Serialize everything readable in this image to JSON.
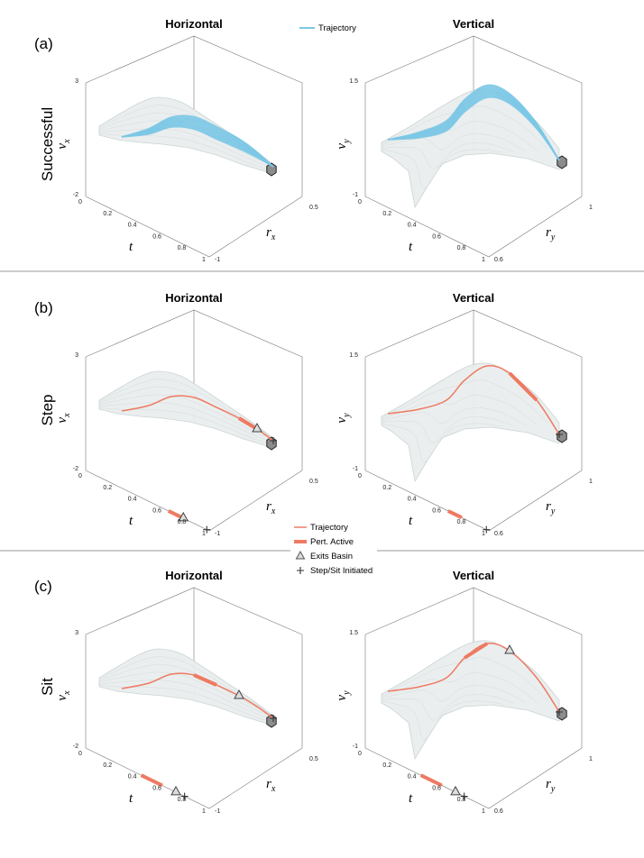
{
  "figure": {
    "panel_titles": {
      "horizontal": "Horizontal",
      "vertical": "Vertical"
    },
    "top_legend": {
      "trajectory": "Trajectory"
    },
    "mid_legend": {
      "trajectory": "Trajectory",
      "pert_active": "Pert. Active",
      "exits_basin": "Exits Basin",
      "step_sit": "Step/Sit Initiated"
    },
    "colors": {
      "successful": "#7cc8e6",
      "failure": "#ee7a62",
      "basin": "#c9d2d2",
      "target": "#8c8c8c"
    },
    "rows": [
      {
        "tag": "(a)",
        "label": "Successful"
      },
      {
        "tag": "(b)",
        "label": "Step"
      },
      {
        "tag": "(c)",
        "label": "Sit"
      }
    ]
  },
  "chart_data": [
    {
      "type": "line3d",
      "row": "Successful",
      "panel": "Horizontal",
      "title": "Horizontal",
      "axes": {
        "t": {
          "label": "t",
          "ticks": [
            "0",
            "0.2",
            "0.4",
            "0.6",
            "0.8",
            "1"
          ]
        },
        "r": {
          "label": "r",
          "sub": "x",
          "ticks": [
            "-1",
            "0.5"
          ]
        },
        "v": {
          "label": "v",
          "sub": "x",
          "ticks": [
            "-2",
            "3"
          ]
        }
      },
      "series": [
        {
          "name": "Trajectory",
          "count": 12,
          "outcome": "successful"
        }
      ]
    },
    {
      "type": "line3d",
      "row": "Successful",
      "panel": "Vertical",
      "title": "Vertical",
      "axes": {
        "t": {
          "label": "t",
          "ticks": [
            "0",
            "0.2",
            "0.4",
            "0.6",
            "0.8",
            "1"
          ]
        },
        "r": {
          "label": "r",
          "sub": "y",
          "ticks": [
            "0.6",
            "1"
          ]
        },
        "v": {
          "label": "v",
          "sub": "y",
          "ticks": [
            "-1",
            "1.5"
          ]
        }
      },
      "series": [
        {
          "name": "Trajectory",
          "count": 12,
          "outcome": "successful"
        }
      ]
    },
    {
      "type": "line3d",
      "row": "Step",
      "panel": "Horizontal",
      "title": "Horizontal",
      "axes": {
        "t": {
          "label": "t",
          "ticks": [
            "0",
            "0.2",
            "0.4",
            "0.6",
            "0.8",
            "1"
          ]
        },
        "r": {
          "label": "r",
          "sub": "x",
          "ticks": [
            "-1",
            "0.5"
          ]
        },
        "v": {
          "label": "v",
          "sub": "x",
          "ticks": [
            "-2",
            "3"
          ]
        }
      },
      "series": [
        {
          "name": "Trajectory",
          "outcome": "step"
        }
      ],
      "events": {
        "pert_active_t": [
          0.67,
          0.78
        ],
        "exits_basin_t": 0.79,
        "step_initiated_t": 0.98
      }
    },
    {
      "type": "line3d",
      "row": "Step",
      "panel": "Vertical",
      "title": "Vertical",
      "axes": {
        "t": {
          "label": "t",
          "ticks": [
            "0",
            "0.2",
            "0.4",
            "0.6",
            "0.8",
            "1"
          ]
        },
        "r": {
          "label": "r",
          "sub": "y",
          "ticks": [
            "0.6",
            "1"
          ]
        },
        "v": {
          "label": "v",
          "sub": "y",
          "ticks": [
            "-1",
            "1.5"
          ]
        }
      },
      "series": [
        {
          "name": "Trajectory",
          "outcome": "step"
        }
      ],
      "events": {
        "pert_active_t": [
          0.67,
          0.78
        ],
        "step_initiated_t": 0.98
      }
    },
    {
      "type": "line3d",
      "row": "Sit",
      "panel": "Horizontal",
      "title": "Horizontal",
      "axes": {
        "t": {
          "label": "t",
          "ticks": [
            "0",
            "0.2",
            "0.4",
            "0.6",
            "0.8",
            "1"
          ]
        },
        "r": {
          "label": "r",
          "sub": "x",
          "ticks": [
            "-1",
            "0.5"
          ]
        },
        "v": {
          "label": "v",
          "sub": "x",
          "ticks": [
            "-2",
            "3"
          ]
        }
      },
      "series": [
        {
          "name": "Trajectory",
          "outcome": "sit"
        }
      ],
      "events": {
        "pert_active_t": [
          0.45,
          0.62
        ],
        "exits_basin_t": 0.73,
        "sit_initiated_t": 0.8
      }
    },
    {
      "type": "line3d",
      "row": "Sit",
      "panel": "Vertical",
      "title": "Vertical",
      "axes": {
        "t": {
          "label": "t",
          "ticks": [
            "0",
            "0.2",
            "0.4",
            "0.6",
            "0.8",
            "1"
          ]
        },
        "r": {
          "label": "r",
          "sub": "y",
          "ticks": [
            "0.6",
            "1"
          ]
        },
        "v": {
          "label": "v",
          "sub": "y",
          "ticks": [
            "-1",
            "1.5"
          ]
        }
      },
      "series": [
        {
          "name": "Trajectory",
          "outcome": "sit"
        }
      ],
      "events": {
        "pert_active_t": [
          0.45,
          0.62
        ],
        "exits_basin_t": 0.73,
        "sit_initiated_t": 0.8
      }
    }
  ]
}
